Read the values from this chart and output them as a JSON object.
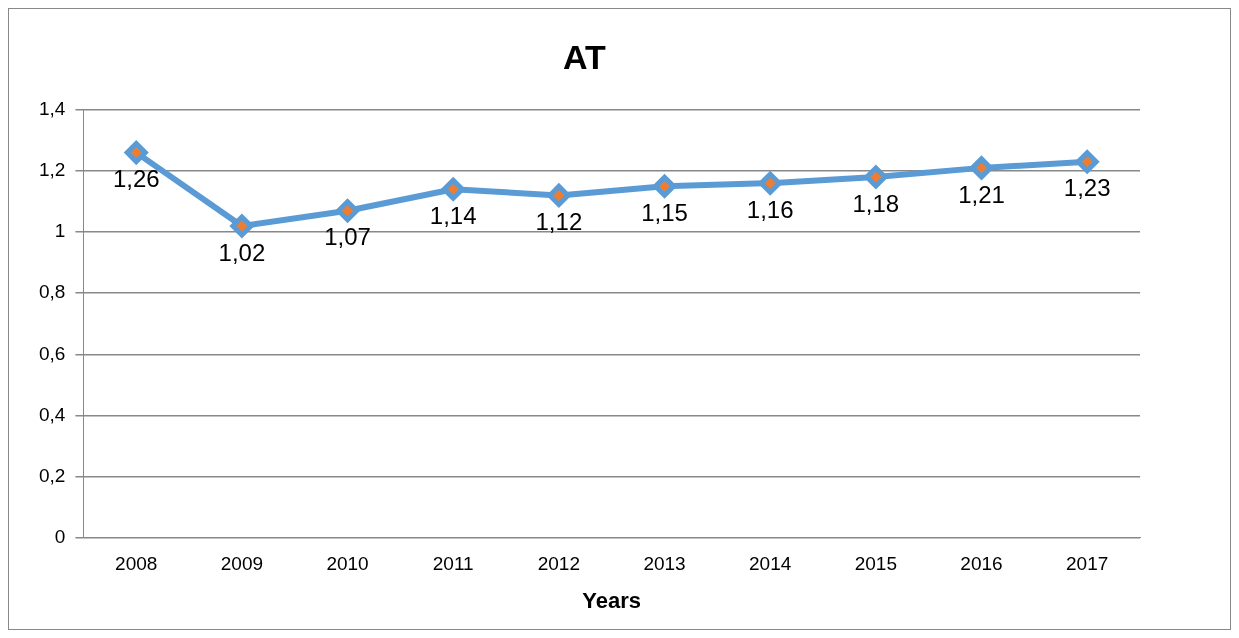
{
  "chart_data": {
    "type": "line",
    "title": "AT",
    "xlabel": "Years",
    "categories": [
      "2008",
      "2009",
      "2010",
      "2011",
      "2012",
      "2013",
      "2014",
      "2015",
      "2016",
      "2017"
    ],
    "series": [
      {
        "color": "#5b9bd5",
        "values": [
          1.26,
          1.02,
          1.07,
          1.14,
          1.12,
          1.15,
          1.16,
          1.18,
          1.21,
          1.23
        ],
        "value_labels": [
          "1,26",
          "1,02",
          "1,07",
          "1,14",
          "1,12",
          "1,15",
          "1,16",
          "1,18",
          "1,21",
          "1,23"
        ]
      }
    ],
    "ylim": [
      0,
      1.4
    ],
    "yticks": [
      {
        "value": 0,
        "label": "0"
      },
      {
        "value": 0.2,
        "label": "0,2"
      },
      {
        "value": 0.4,
        "label": "0,4"
      },
      {
        "value": 0.6,
        "label": "0,6"
      },
      {
        "value": 0.8,
        "label": "0,8"
      },
      {
        "value": 1,
        "label": "1"
      },
      {
        "value": 1.2,
        "label": "1,2"
      },
      {
        "value": 1.4,
        "label": "1,4"
      }
    ],
    "grid": "y",
    "legend": false,
    "marker": "diamond",
    "line_style": "solid"
  }
}
